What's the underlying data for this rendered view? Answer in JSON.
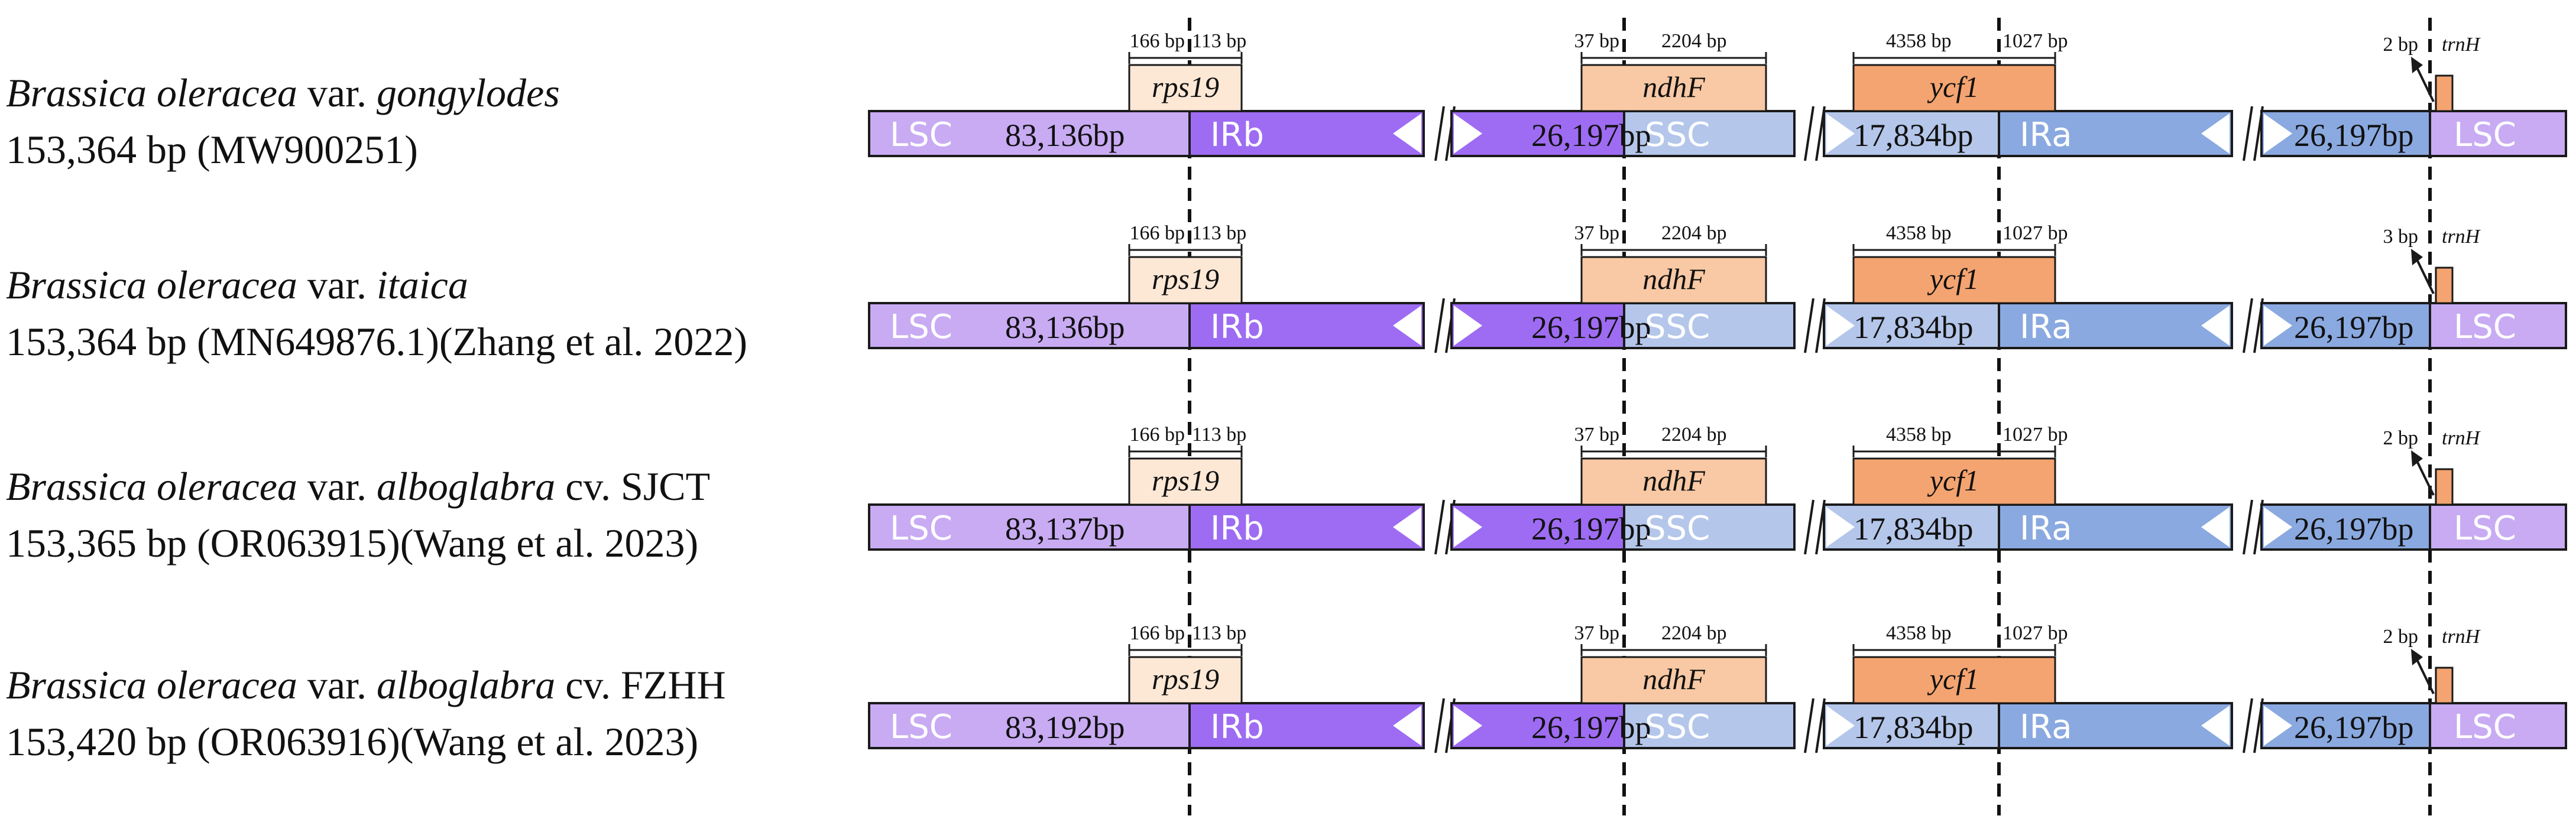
{
  "colors": {
    "lsc": "#c8abf3",
    "irb": "#9e6cf3",
    "ssc": "#b4c6ea",
    "ira": "#8aa9e0",
    "rps19": "#fde8d6",
    "ndhF": "#f8c9a4",
    "ycf1": "#f4a470",
    "trnH": "#f4a470",
    "stroke": "#1a1a1a",
    "dash": "#111111",
    "region_text": "#ffffff",
    "size_text": "#111111"
  },
  "region_labels": {
    "lsc": "LSC",
    "irb": "IRb",
    "ssc": "SSC",
    "ira": "IRa",
    "lsc_end": "LSC"
  },
  "gene_labels": {
    "rps19": "rps19",
    "ndhF": "ndhF",
    "ycf1": "ycf1",
    "trnH": "trnH"
  },
  "rows": [
    {
      "name": {
        "genus": "Brassica oleracea",
        "var_prefix": " var. ",
        "variety": "gongylodes",
        "cultivar": ""
      },
      "size_line": "153,364 bp (MW900251)",
      "lsc_size": "83,136bp",
      "ir_size_left": "26,197bp",
      "ssc_size": "17,834bp",
      "ir_size_right": "26,197bp",
      "rps19_left": "166 bp",
      "rps19_right": "113 bp",
      "ndhF_left": "37 bp",
      "ndhF_right": "2204 bp",
      "ycf1_left": "4358 bp",
      "ycf1_right": "1027 bp",
      "trnH_gap": "2 bp"
    },
    {
      "name": {
        "genus": "Brassica oleracea",
        "var_prefix": " var. ",
        "variety": "itaica",
        "cultivar": ""
      },
      "size_line": "153,364 bp (MN649876.1)(Zhang et al. 2022)",
      "lsc_size": "83,136bp",
      "ir_size_left": "26,197bp",
      "ssc_size": "17,834bp",
      "ir_size_right": "26,197bp",
      "rps19_left": "166 bp",
      "rps19_right": "113 bp",
      "ndhF_left": "37 bp",
      "ndhF_right": "2204 bp",
      "ycf1_left": "4358 bp",
      "ycf1_right": "1027 bp",
      "trnH_gap": "3 bp"
    },
    {
      "name": {
        "genus": "Brassica oleracea",
        "var_prefix": " var. ",
        "variety": "alboglabra",
        "cultivar": " cv. SJCT"
      },
      "size_line": "153,365 bp (OR063915)(Wang et al. 2023)",
      "lsc_size": "83,137bp",
      "ir_size_left": "26,197bp",
      "ssc_size": "17,834bp",
      "ir_size_right": "26,197bp",
      "rps19_left": "166 bp",
      "rps19_right": "113 bp",
      "ndhF_left": "37 bp",
      "ndhF_right": "2204 bp",
      "ycf1_left": "4358 bp",
      "ycf1_right": "1027 bp",
      "trnH_gap": "2 bp"
    },
    {
      "name": {
        "genus": "Brassica oleracea",
        "var_prefix": " var. ",
        "variety": "alboglabra",
        "cultivar": " cv. FZHH"
      },
      "size_line": "153,420 bp (OR063916)(Wang et al. 2023)",
      "lsc_size": "83,192bp",
      "ir_size_left": "26,197bp",
      "ssc_size": "17,834bp",
      "ir_size_right": "26,197bp",
      "rps19_left": "166 bp",
      "rps19_right": "113 bp",
      "ndhF_left": "37 bp",
      "ndhF_right": "2204 bp",
      "ycf1_left": "4358 bp",
      "ycf1_right": "1027 bp",
      "trnH_gap": "2 bp"
    }
  ]
}
